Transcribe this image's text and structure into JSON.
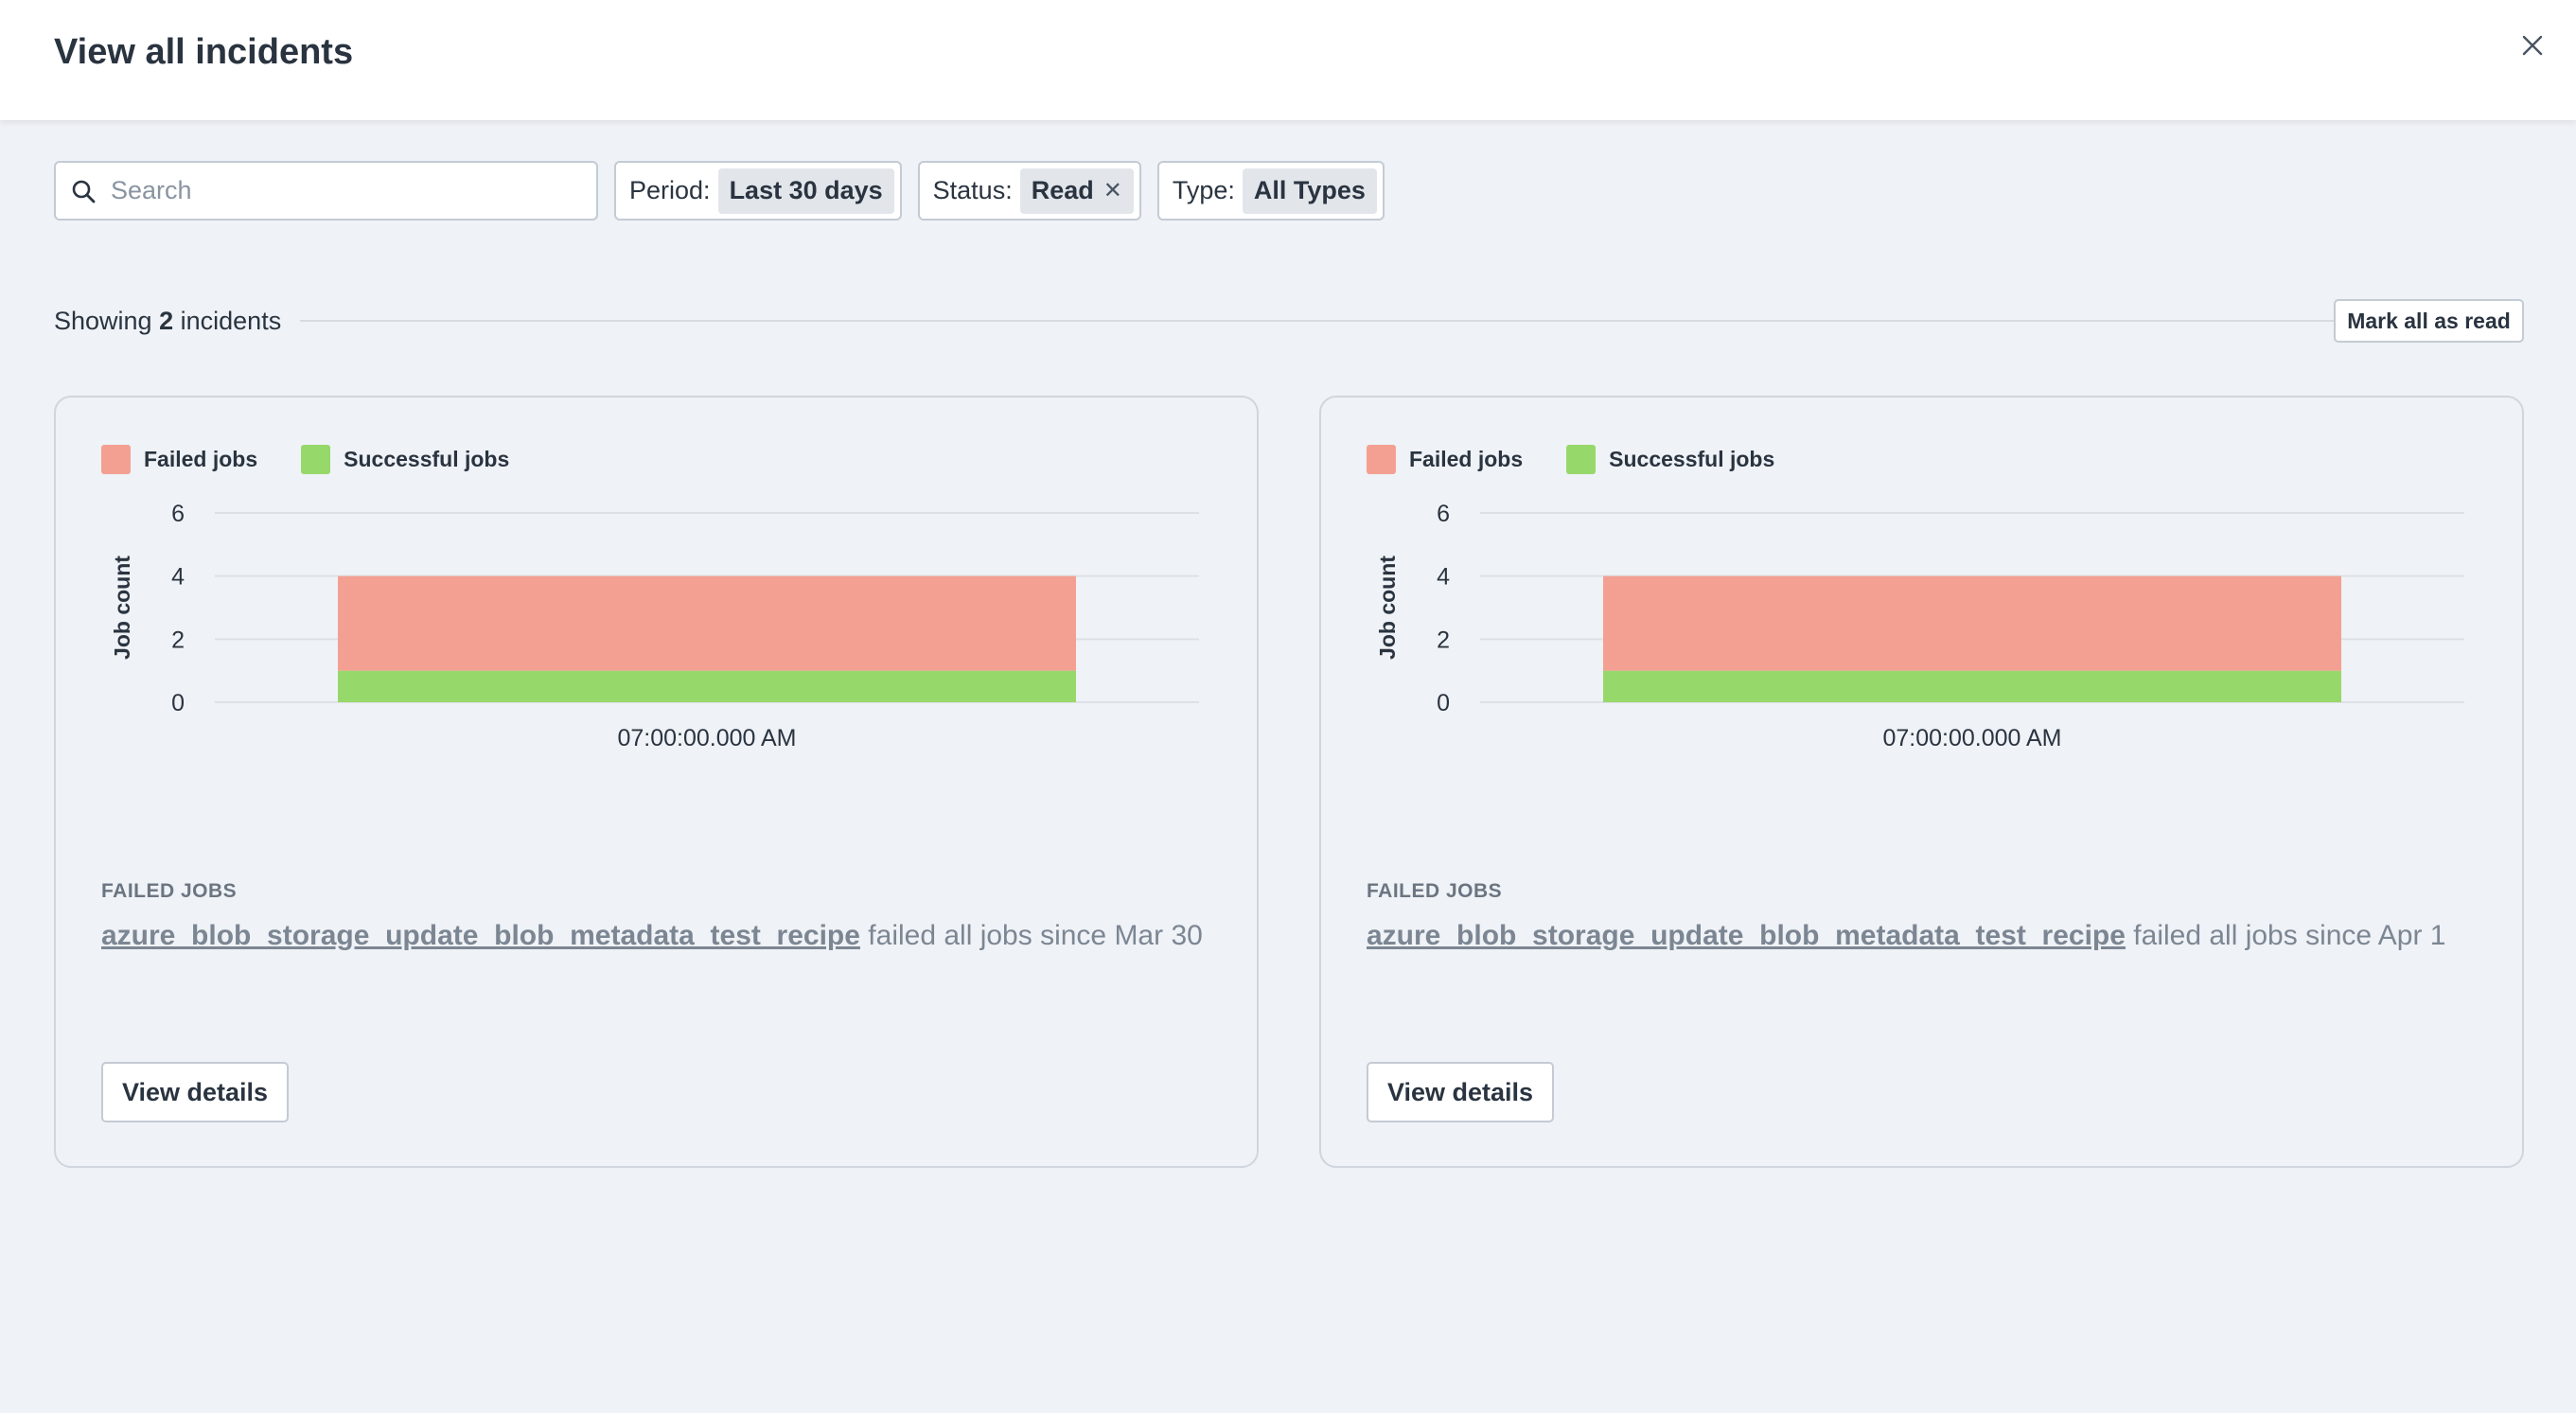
{
  "header": {
    "title": "View all incidents"
  },
  "filters": {
    "search_placeholder": "Search",
    "period_label": "Period:",
    "period_value": "Last 30 days",
    "status_label": "Status:",
    "status_value": "Read",
    "type_label": "Type:",
    "type_value": "All Types"
  },
  "summary": {
    "prefix": "Showing",
    "count": "2",
    "suffix": "incidents",
    "mark_all_label": "Mark all as read"
  },
  "colors": {
    "failed": "#f3a092",
    "successful": "#97d86b"
  },
  "incidents": [
    {
      "legend_failed": "Failed jobs",
      "legend_successful": "Successful jobs",
      "failed_jobs_heading": "FAILED JOBS",
      "recipe": "azure_blob_storage_update_blob_metadata_test_recipe",
      "message": "failed all jobs since Mar 30",
      "view_details_label": "View details"
    },
    {
      "legend_failed": "Failed jobs",
      "legend_successful": "Successful jobs",
      "failed_jobs_heading": "FAILED JOBS",
      "recipe": "azure_blob_storage_update_blob_metadata_test_recipe",
      "message": "failed all jobs since Apr 1",
      "view_details_label": "View details"
    }
  ],
  "chart_data": [
    {
      "type": "bar",
      "stacked": true,
      "categories": [
        "07:00:00.000 AM"
      ],
      "series": [
        {
          "name": "Successful jobs",
          "values": [
            1
          ]
        },
        {
          "name": "Failed jobs",
          "values": [
            3
          ]
        }
      ],
      "ylabel": "Job count",
      "ylim": [
        0,
        6
      ],
      "yticks": [
        0,
        2,
        4,
        6
      ],
      "grid": true,
      "legend": "top-left"
    },
    {
      "type": "bar",
      "stacked": true,
      "categories": [
        "07:00:00.000 AM"
      ],
      "series": [
        {
          "name": "Successful jobs",
          "values": [
            1
          ]
        },
        {
          "name": "Failed jobs",
          "values": [
            3
          ]
        }
      ],
      "ylabel": "Job count",
      "ylim": [
        0,
        6
      ],
      "yticks": [
        0,
        2,
        4,
        6
      ],
      "grid": true,
      "legend": "top-left"
    }
  ]
}
